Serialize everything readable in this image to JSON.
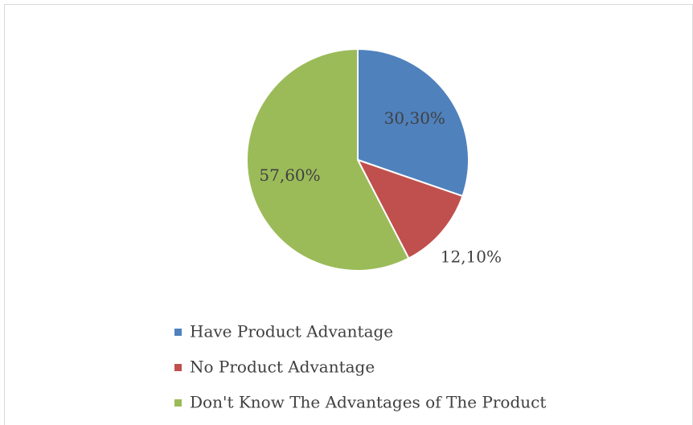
{
  "chart_data": {
    "type": "pie",
    "categories": [
      "Have Product Advantage",
      "No Product Advantage",
      "Don't Know The Advantages of The Product"
    ],
    "values": [
      30.3,
      12.1,
      57.6
    ],
    "value_labels": [
      "30,30%",
      "12,10%",
      "57,60%"
    ],
    "colors": [
      "#4f81bd",
      "#c0504d",
      "#9bbb59"
    ],
    "legend": "bottom"
  }
}
